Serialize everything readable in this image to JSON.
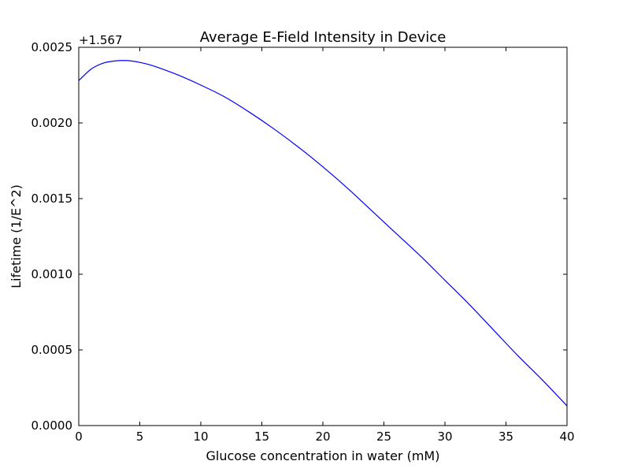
{
  "chart_data": {
    "type": "line",
    "title": "Average E-Field Intensity in Device",
    "xlabel": "Glucose concentration in water (mM)",
    "ylabel": "Lifetime (1/E^2)",
    "offset_label": "+1.567",
    "xlim": [
      0,
      40
    ],
    "ylim": [
      0.0,
      0.0025
    ],
    "x_ticks": [
      0,
      5,
      10,
      15,
      20,
      25,
      30,
      35,
      40
    ],
    "x_tick_labels": [
      "0",
      "5",
      "10",
      "15",
      "20",
      "25",
      "30",
      "35",
      "40"
    ],
    "y_ticks": [
      0.0,
      0.0005,
      0.001,
      0.0015,
      0.002,
      0.0025
    ],
    "y_tick_labels": [
      "0.0000",
      "0.0005",
      "0.0010",
      "0.0015",
      "0.0020",
      "0.0025"
    ],
    "grid": false,
    "series": [
      {
        "color": "#0000ff",
        "x": [
          0,
          1,
          2,
          3,
          4,
          5,
          6,
          8,
          10,
          12,
          14,
          16,
          18,
          20,
          22,
          24,
          26,
          28,
          30,
          32,
          34,
          36,
          38,
          40
        ],
        "y": [
          0.00228,
          0.002355,
          0.002395,
          0.00241,
          0.002412,
          0.0024,
          0.00238,
          0.002321,
          0.00225,
          0.00217,
          0.00207,
          0.00196,
          0.00184,
          0.00171,
          0.00157,
          0.00142,
          0.00127,
          0.00112,
          0.00096,
          0.0008,
          0.00063,
          0.00046,
          0.0003,
          0.00013
        ]
      }
    ]
  }
}
